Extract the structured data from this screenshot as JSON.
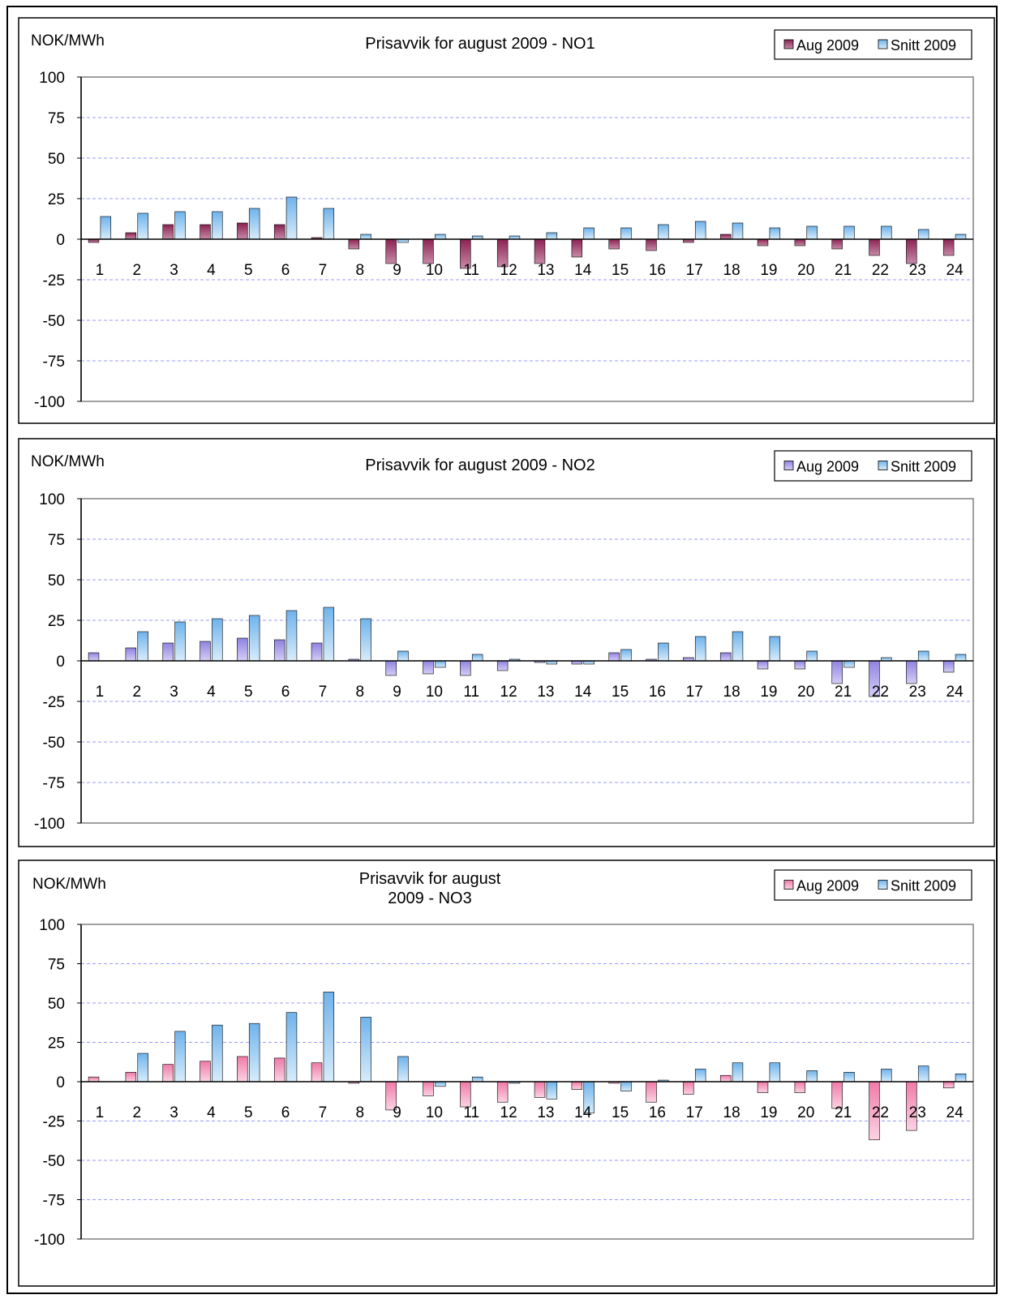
{
  "colors": {
    "plot_border": "#808080",
    "grid": "#9999ff",
    "panel_border": "#000000",
    "bar_outline": "#000000"
  },
  "chart_data": [
    {
      "type": "bar",
      "title": "Prisavvik for  august 2009 - NO1",
      "ylabel": "NOK/MWh",
      "xlabel": "",
      "ylim": [
        -100,
        100
      ],
      "yticks": [
        100,
        75,
        50,
        25,
        0,
        -25,
        -50,
        -75,
        -100
      ],
      "grid": true,
      "legend_position": "top-right",
      "categories": [
        "1",
        "2",
        "3",
        "4",
        "5",
        "6",
        "7",
        "8",
        "9",
        "10",
        "11",
        "12",
        "13",
        "14",
        "15",
        "16",
        "17",
        "18",
        "19",
        "20",
        "21",
        "22",
        "23",
        "24"
      ],
      "series": [
        {
          "name": "Aug 2009",
          "color": "#8b2252",
          "colorLight": "#c88aa8",
          "values": [
            -2,
            4,
            9,
            9,
            10,
            9,
            1,
            -6,
            -15,
            -15,
            -18,
            -17,
            -15,
            -11,
            -6,
            -7,
            -2,
            3,
            -4,
            -4,
            -6,
            -10,
            -15,
            -10
          ]
        },
        {
          "name": "Snitt 2009",
          "color": "#6fb3ec",
          "colorLight": "#d8ecfa",
          "values": [
            14,
            16,
            17,
            17,
            19,
            26,
            19,
            3,
            -2,
            3,
            2,
            2,
            4,
            7,
            7,
            9,
            11,
            10,
            7,
            8,
            8,
            8,
            6,
            3
          ]
        }
      ]
    },
    {
      "type": "bar",
      "title": "Prisavvik for  august 2009 - NO2",
      "ylabel": "NOK/MWh",
      "xlabel": "",
      "ylim": [
        -100,
        100
      ],
      "yticks": [
        100,
        75,
        50,
        25,
        0,
        -25,
        -50,
        -75,
        -100
      ],
      "grid": true,
      "legend_position": "top-right",
      "categories": [
        "1",
        "2",
        "3",
        "4",
        "5",
        "6",
        "7",
        "8",
        "9",
        "10",
        "11",
        "12",
        "13",
        "14",
        "15",
        "16",
        "17",
        "18",
        "19",
        "20",
        "21",
        "22",
        "23",
        "24"
      ],
      "series": [
        {
          "name": "Aug 2009",
          "color": "#8f83e0",
          "colorLight": "#d4cef6",
          "values": [
            5,
            8,
            11,
            12,
            14,
            13,
            11,
            1,
            -9,
            -8,
            -9,
            -6,
            -1,
            -2,
            5,
            1,
            2,
            5,
            -5,
            -5,
            -14,
            -22,
            -14,
            -7
          ]
        },
        {
          "name": "Snitt 2009",
          "color": "#6fb3ec",
          "colorLight": "#d8ecfa",
          "values": [
            0,
            18,
            24,
            26,
            28,
            31,
            33,
            26,
            6,
            -4,
            4,
            1,
            -2,
            -2,
            7,
            11,
            15,
            18,
            15,
            6,
            -4,
            2,
            6,
            4
          ]
        }
      ]
    },
    {
      "type": "bar",
      "title_lines": [
        "Prisavvik for  august",
        "2009 - NO3"
      ],
      "ylabel": "NOK/MWh",
      "xlabel": "",
      "ylim": [
        -100,
        100
      ],
      "yticks": [
        100,
        75,
        50,
        25,
        0,
        -25,
        -50,
        -75,
        -100
      ],
      "grid": true,
      "legend_position": "top-right",
      "categories": [
        "1",
        "2",
        "3",
        "4",
        "5",
        "6",
        "7",
        "8",
        "9",
        "10",
        "11",
        "12",
        "13",
        "14",
        "15",
        "16",
        "17",
        "18",
        "19",
        "20",
        "21",
        "22",
        "23",
        "24"
      ],
      "series": [
        {
          "name": "Aug 2009",
          "color": "#f07aa8",
          "colorLight": "#fbd3e3",
          "values": [
            3,
            6,
            11,
            13,
            16,
            15,
            12,
            -1,
            -18,
            -9,
            -16,
            -13,
            -10,
            -5,
            -1,
            -13,
            -8,
            4,
            -7,
            -7,
            -17,
            -37,
            -31,
            -4
          ]
        },
        {
          "name": "Snitt 2009",
          "color": "#6fb3ec",
          "colorLight": "#d8ecfa",
          "values": [
            0,
            18,
            32,
            36,
            37,
            44,
            57,
            41,
            16,
            -3,
            3,
            -1,
            -11,
            -20,
            -6,
            1,
            8,
            12,
            12,
            7,
            6,
            8,
            10,
            5
          ]
        }
      ]
    }
  ]
}
